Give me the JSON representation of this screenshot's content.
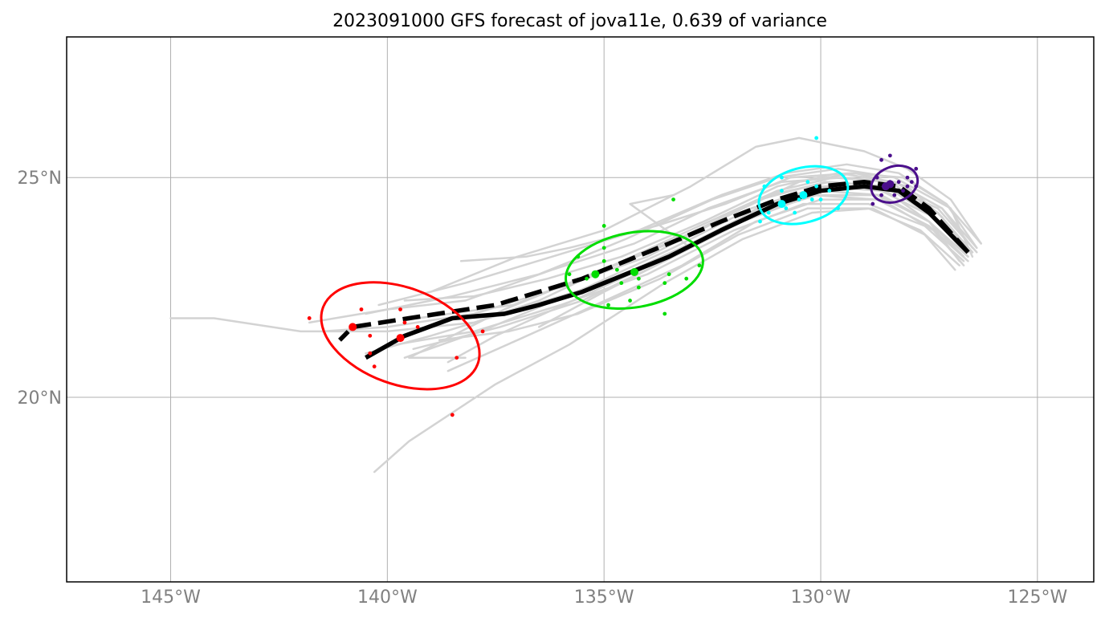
{
  "title": "2023091000 GFS forecast of jova11e, 0.639 of variance",
  "map": {
    "lon_range": [
      -147.4,
      -123.7
    ],
    "lat_range": [
      15.8,
      28.2
    ],
    "grid": true,
    "lon_ticks": [
      {
        "value": -145,
        "label": "145°W"
      },
      {
        "value": -140,
        "label": "140°W"
      },
      {
        "value": -135,
        "label": "135°W"
      },
      {
        "value": -130,
        "label": "130°W"
      },
      {
        "value": -125,
        "label": "125°W"
      }
    ],
    "lat_ticks": [
      {
        "value": 25,
        "label": "25°N"
      },
      {
        "value": 20,
        "label": "20°N"
      }
    ],
    "colors": {
      "ensemble": "#d3d3d3",
      "grid": "#b0b0b0",
      "tick_label": "#808080",
      "track": "#000000"
    }
  },
  "chart_data": {
    "type": "map",
    "ensemble_tracks": [
      [
        [
          -126.6,
          23.3
        ],
        [
          -127.2,
          24.1
        ],
        [
          -128.0,
          24.8
        ],
        [
          -129.2,
          25.1
        ],
        [
          -130.5,
          24.9
        ],
        [
          -132.0,
          24.2
        ],
        [
          -134.0,
          23.2
        ],
        [
          -136.0,
          22.5
        ],
        [
          -138.0,
          21.9
        ],
        [
          -140.0,
          21.6
        ],
        [
          -141.5,
          21.5
        ]
      ],
      [
        [
          -126.5,
          23.2
        ],
        [
          -127.0,
          24.3
        ],
        [
          -128.3,
          25.0
        ],
        [
          -129.6,
          25.2
        ],
        [
          -131.0,
          25.0
        ],
        [
          -132.5,
          24.5
        ],
        [
          -134.5,
          23.6
        ],
        [
          -136.5,
          22.8
        ],
        [
          -138.5,
          22.3
        ],
        [
          -140.5,
          21.9
        ]
      ],
      [
        [
          -126.8,
          23.1
        ],
        [
          -127.5,
          24.0
        ],
        [
          -128.5,
          24.7
        ],
        [
          -129.8,
          24.8
        ],
        [
          -131.2,
          24.4
        ],
        [
          -133.0,
          23.5
        ],
        [
          -135.0,
          22.6
        ],
        [
          -137.0,
          22.0
        ],
        [
          -139.0,
          21.4
        ],
        [
          -140.5,
          21.0
        ]
      ],
      [
        [
          -126.4,
          23.4
        ],
        [
          -127.1,
          24.4
        ],
        [
          -128.2,
          25.1
        ],
        [
          -129.4,
          25.3
        ],
        [
          -130.8,
          25.1
        ],
        [
          -132.3,
          24.6
        ],
        [
          -134.2,
          23.8
        ],
        [
          -136.2,
          23.2
        ],
        [
          -138.2,
          22.6
        ],
        [
          -140.2,
          22.1
        ]
      ],
      [
        [
          -126.7,
          23.0
        ],
        [
          -127.4,
          23.8
        ],
        [
          -128.6,
          24.5
        ],
        [
          -130.0,
          24.5
        ],
        [
          -131.5,
          24.0
        ],
        [
          -133.2,
          23.0
        ],
        [
          -135.2,
          22.1
        ],
        [
          -137.0,
          21.3
        ],
        [
          -138.6,
          20.6
        ]
      ],
      [
        [
          -126.3,
          23.5
        ],
        [
          -127.0,
          24.5
        ],
        [
          -128.0,
          25.2
        ],
        [
          -129.0,
          25.6
        ],
        [
          -130.5,
          25.9
        ],
        [
          -131.5,
          25.7
        ],
        [
          -133.0,
          24.8
        ],
        [
          -135.0,
          23.8
        ],
        [
          -137.0,
          23.2
        ],
        [
          -139.0,
          22.4
        ]
      ],
      [
        [
          -126.9,
          22.9
        ],
        [
          -127.6,
          23.7
        ],
        [
          -128.8,
          24.3
        ],
        [
          -130.2,
          24.2
        ],
        [
          -131.8,
          23.6
        ],
        [
          -133.6,
          22.6
        ],
        [
          -135.8,
          21.2
        ],
        [
          -137.5,
          20.3
        ],
        [
          -139.5,
          19.0
        ],
        [
          -140.3,
          18.3
        ]
      ],
      [
        [
          -126.5,
          23.3
        ],
        [
          -127.3,
          24.2
        ],
        [
          -128.4,
          24.9
        ],
        [
          -129.7,
          25.0
        ],
        [
          -131.0,
          24.7
        ],
        [
          -132.8,
          23.9
        ],
        [
          -134.8,
          23.0
        ],
        [
          -136.5,
          22.2
        ],
        [
          -138.0,
          21.7
        ],
        [
          -140.0,
          21.5
        ],
        [
          -142.0,
          21.5
        ],
        [
          -144.0,
          21.8
        ],
        [
          -145.0,
          21.8
        ]
      ],
      [
        [
          -126.6,
          23.2
        ],
        [
          -127.4,
          24.1
        ],
        [
          -128.6,
          24.7
        ],
        [
          -130.0,
          24.8
        ],
        [
          -131.6,
          24.3
        ],
        [
          -133.4,
          23.4
        ],
        [
          -135.4,
          22.5
        ],
        [
          -137.6,
          21.6
        ],
        [
          -139.6,
          20.9
        ]
      ],
      [
        [
          -126.4,
          23.4
        ],
        [
          -127.2,
          24.3
        ],
        [
          -128.3,
          24.9
        ],
        [
          -129.5,
          25.0
        ],
        [
          -130.9,
          24.9
        ],
        [
          -132.6,
          24.3
        ],
        [
          -134.3,
          23.5
        ],
        [
          -136.2,
          22.9
        ],
        [
          -138.2,
          22.2
        ],
        [
          -140.0,
          22.0
        ],
        [
          -141.8,
          21.7
        ]
      ],
      [
        [
          -126.7,
          23.1
        ],
        [
          -127.6,
          23.9
        ],
        [
          -128.9,
          24.4
        ],
        [
          -130.4,
          24.4
        ],
        [
          -132.0,
          23.8
        ],
        [
          -134.0,
          22.8
        ],
        [
          -136.0,
          22.1
        ],
        [
          -138.0,
          21.5
        ],
        [
          -139.8,
          21.2
        ]
      ],
      [
        [
          -126.5,
          23.3
        ],
        [
          -127.3,
          24.2
        ],
        [
          -128.5,
          24.8
        ],
        [
          -129.9,
          24.9
        ],
        [
          -131.4,
          24.5
        ],
        [
          -133.3,
          23.6
        ],
        [
          -135.3,
          22.8
        ],
        [
          -137.3,
          22.0
        ],
        [
          -139.5,
          20.9
        ],
        [
          -138.2,
          20.9
        ]
      ],
      [
        [
          -126.6,
          23.2
        ],
        [
          -127.5,
          24.0
        ],
        [
          -128.7,
          24.6
        ],
        [
          -130.1,
          24.6
        ],
        [
          -131.7,
          24.1
        ],
        [
          -133.5,
          23.2
        ],
        [
          -135.5,
          22.3
        ],
        [
          -137.5,
          21.4
        ],
        [
          -138.6,
          20.8
        ]
      ],
      [
        [
          -126.3,
          23.5
        ],
        [
          -127.1,
          24.4
        ],
        [
          -128.1,
          25.0
        ],
        [
          -129.3,
          25.1
        ],
        [
          -130.7,
          25.0
        ],
        [
          -132.2,
          24.4
        ],
        [
          -133.8,
          23.9
        ],
        [
          -135.8,
          23.4
        ],
        [
          -136.8,
          23.2
        ],
        [
          -138.3,
          23.1
        ]
      ],
      [
        [
          -126.8,
          23.0
        ],
        [
          -127.7,
          23.8
        ],
        [
          -128.9,
          24.3
        ],
        [
          -130.3,
          24.3
        ],
        [
          -131.9,
          23.7
        ],
        [
          -133.7,
          22.7
        ],
        [
          -135.6,
          21.9
        ],
        [
          -137.2,
          21.5
        ],
        [
          -138.8,
          21.3
        ]
      ],
      [
        [
          -126.5,
          23.4
        ],
        [
          -127.2,
          24.3
        ],
        [
          -128.3,
          24.9
        ],
        [
          -129.6,
          25.1
        ],
        [
          -131.0,
          24.8
        ],
        [
          -132.7,
          24.0
        ],
        [
          -134.6,
          23.2
        ],
        [
          -136.3,
          22.7
        ],
        [
          -138.0,
          22.3
        ],
        [
          -139.6,
          22.2
        ]
      ],
      [
        [
          -126.7,
          23.2
        ],
        [
          -127.5,
          24.0
        ],
        [
          -128.6,
          24.6
        ],
        [
          -130.0,
          24.7
        ],
        [
          -131.5,
          24.2
        ],
        [
          -133.2,
          23.3
        ],
        [
          -135.0,
          22.4
        ],
        [
          -136.5,
          21.6
        ]
      ],
      [
        [
          -126.4,
          23.3
        ],
        [
          -127.3,
          24.3
        ],
        [
          -128.4,
          24.8
        ],
        [
          -129.8,
          24.9
        ],
        [
          -131.2,
          24.6
        ],
        [
          -133.0,
          23.7
        ],
        [
          -135.0,
          22.9
        ],
        [
          -137.1,
          22.1
        ],
        [
          -139.3,
          21.8
        ]
      ],
      [
        [
          -126.6,
          23.1
        ],
        [
          -127.5,
          23.9
        ],
        [
          -128.7,
          24.5
        ],
        [
          -130.2,
          24.6
        ],
        [
          -131.8,
          24.0
        ],
        [
          -133.6,
          23.1
        ],
        [
          -135.5,
          22.2
        ],
        [
          -137.4,
          21.6
        ],
        [
          -139.4,
          21.1
        ]
      ],
      [
        [
          -126.5,
          23.3
        ],
        [
          -127.4,
          24.1
        ],
        [
          -128.5,
          24.8
        ],
        [
          -129.9,
          24.8
        ],
        [
          -131.3,
          24.4
        ],
        [
          -133.0,
          23.4
        ],
        [
          -134.4,
          24.4
        ],
        [
          -133.4,
          24.6
        ]
      ]
    ],
    "deterministic_track": {
      "style": "solid",
      "color": "#000000",
      "points": [
        [
          -126.6,
          23.3
        ],
        [
          -127.5,
          24.2
        ],
        [
          -128.2,
          24.7
        ],
        [
          -129.0,
          24.8
        ],
        [
          -130.0,
          24.7
        ],
        [
          -131.0,
          24.4
        ],
        [
          -132.3,
          23.8
        ],
        [
          -133.5,
          23.2
        ],
        [
          -134.5,
          22.8
        ],
        [
          -135.5,
          22.4
        ],
        [
          -136.5,
          22.1
        ],
        [
          -137.3,
          21.9
        ],
        [
          -138.5,
          21.8
        ],
        [
          -139.6,
          21.4
        ],
        [
          -140.5,
          20.9
        ]
      ]
    },
    "ensemble_mean_track": {
      "style": "dashed",
      "color": "#000000",
      "points": [
        [
          -126.6,
          23.3
        ],
        [
          -127.5,
          24.3
        ],
        [
          -128.2,
          24.8
        ],
        [
          -129.0,
          24.9
        ],
        [
          -130.0,
          24.8
        ],
        [
          -131.0,
          24.5
        ],
        [
          -132.3,
          24.0
        ],
        [
          -133.5,
          23.5
        ],
        [
          -134.5,
          23.1
        ],
        [
          -135.5,
          22.7
        ],
        [
          -136.5,
          22.4
        ],
        [
          -137.5,
          22.1
        ],
        [
          -138.5,
          21.95
        ],
        [
          -139.5,
          21.8
        ],
        [
          -140.8,
          21.6
        ],
        [
          -141.1,
          21.3
        ]
      ]
    },
    "forecast_clusters": [
      {
        "color": "#4b0f8c",
        "ellipse": {
          "center": [
            -128.3,
            24.85
          ],
          "rx": 0.55,
          "ry": 0.4,
          "angle": 20
        },
        "points": [
          [
            -128.5,
            24.8
          ],
          [
            -128.2,
            24.9
          ],
          [
            -128.0,
            25.0
          ],
          [
            -127.8,
            25.2
          ],
          [
            -128.6,
            25.4
          ],
          [
            -128.4,
            25.5
          ],
          [
            -128.8,
            24.4
          ],
          [
            -128.1,
            24.7
          ],
          [
            -127.9,
            24.9
          ],
          [
            -128.3,
            24.6
          ],
          [
            -128.7,
            25.0
          ],
          [
            -128.4,
            24.9
          ],
          [
            -128.0,
            24.8
          ],
          [
            -128.6,
            24.6
          ],
          [
            -127.8,
            24.8
          ]
        ],
        "det": [
          -128.4,
          24.85
        ],
        "mean": [
          -128.5,
          24.8
        ]
      },
      {
        "color": "#00ffff",
        "ellipse": {
          "center": [
            -130.4,
            24.6
          ],
          "rx": 1.05,
          "ry": 0.62,
          "angle": 15
        },
        "points": [
          [
            -130.1,
            25.9
          ],
          [
            -131.3,
            24.8
          ],
          [
            -130.9,
            25.0
          ],
          [
            -130.3,
            24.9
          ],
          [
            -130.1,
            24.8
          ],
          [
            -129.8,
            24.7
          ],
          [
            -130.5,
            24.5
          ],
          [
            -130.8,
            24.3
          ],
          [
            -131.2,
            24.2
          ],
          [
            -131.4,
            24.0
          ],
          [
            -130.6,
            24.2
          ],
          [
            -130.2,
            24.5
          ],
          [
            -129.6,
            24.3
          ],
          [
            -130.9,
            24.7
          ],
          [
            -130.0,
            24.5
          ]
        ],
        "det": [
          -130.4,
          24.6
        ],
        "mean": [
          -130.9,
          24.4
        ]
      },
      {
        "color": "#00dd00",
        "ellipse": {
          "center": [
            -134.3,
            22.9
          ],
          "rx": 1.6,
          "ry": 0.85,
          "angle": 10
        },
        "points": [
          [
            -135.0,
            23.9
          ],
          [
            -133.4,
            24.5
          ],
          [
            -135.6,
            23.2
          ],
          [
            -135.0,
            23.4
          ],
          [
            -134.7,
            22.9
          ],
          [
            -133.5,
            22.8
          ],
          [
            -132.8,
            23.0
          ],
          [
            -133.1,
            22.7
          ],
          [
            -133.6,
            22.6
          ],
          [
            -134.4,
            22.2
          ],
          [
            -134.6,
            22.6
          ],
          [
            -134.9,
            22.1
          ],
          [
            -135.8,
            22.8
          ],
          [
            -134.2,
            22.5
          ],
          [
            -133.6,
            21.9
          ],
          [
            -135.4,
            22.7
          ],
          [
            -134.2,
            22.7
          ],
          [
            -135.0,
            23.1
          ]
        ],
        "det": [
          -134.3,
          22.85
        ],
        "mean": [
          -135.2,
          22.8
        ]
      },
      {
        "color": "#ff0000",
        "ellipse": {
          "center": [
            -139.7,
            21.4
          ],
          "rx": 1.9,
          "ry": 1.1,
          "angle": -20
        },
        "points": [
          [
            -141.8,
            21.8
          ],
          [
            -140.6,
            22.0
          ],
          [
            -139.7,
            22.0
          ],
          [
            -139.6,
            21.7
          ],
          [
            -139.3,
            21.6
          ],
          [
            -140.4,
            21.4
          ],
          [
            -140.4,
            21.0
          ],
          [
            -140.3,
            20.7
          ],
          [
            -138.4,
            20.9
          ],
          [
            -137.8,
            21.5
          ],
          [
            -138.5,
            19.6
          ]
        ],
        "det": [
          -139.7,
          21.35
        ],
        "mean": [
          -140.8,
          21.6
        ]
      }
    ]
  }
}
